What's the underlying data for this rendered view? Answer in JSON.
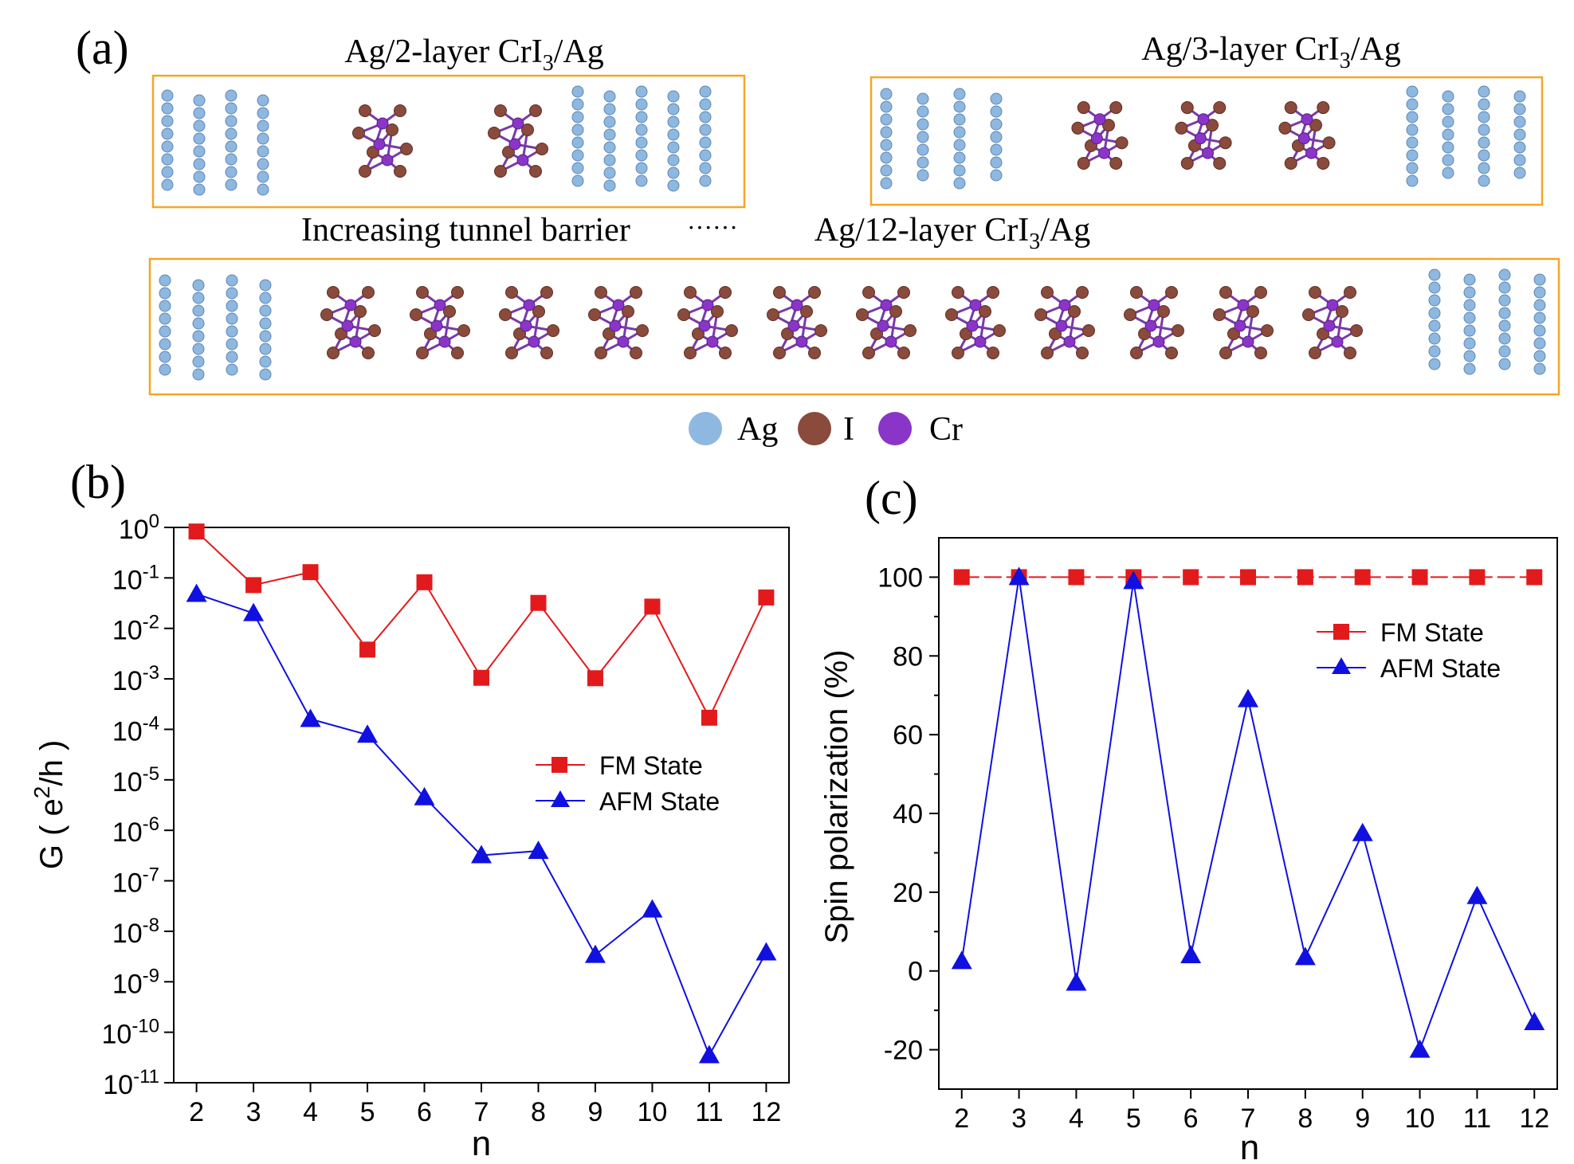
{
  "panel_a": {
    "label": "(a)",
    "structures": [
      {
        "title_pre": "Ag/2-layer CrI",
        "title_sub": "3",
        "title_post": "/Ag",
        "layers": 2
      },
      {
        "title_pre": "Ag/3-layer CrI",
        "title_sub": "3",
        "title_post": "/Ag",
        "layers": 3
      },
      {
        "title_pre": "Ag/12-layer CrI",
        "title_sub": "3",
        "title_post": "/Ag",
        "layers": 12
      }
    ],
    "barrier_text": "Increasing tunnel barrier",
    "barrier_dots": "······",
    "atom_legend": [
      {
        "label": "Ag",
        "color": "#8fb8e0"
      },
      {
        "label": "I",
        "color": "#8a4a3c"
      },
      {
        "label": "Cr",
        "color": "#8a35c8"
      }
    ],
    "box_color": "#f5a623"
  },
  "chart_data": [
    {
      "panel": "(b)",
      "type": "line",
      "xlabel": "n",
      "ylabel_pre": "G ( e",
      "ylabel_sup": "2",
      "ylabel_post": "/h )",
      "yscale": "log",
      "xlim": [
        1.6,
        12.4
      ],
      "ylim_exp": [
        -11,
        0
      ],
      "x": [
        2,
        3,
        4,
        5,
        6,
        7,
        8,
        9,
        10,
        11,
        12
      ],
      "ytick_exponents": [
        "0",
        "-1",
        "-2",
        "-3",
        "-4",
        "-5",
        "-6",
        "-7",
        "-8",
        "-9",
        "-10",
        "-11"
      ],
      "series": [
        {
          "name": "FM State",
          "color": "#e31a1c",
          "marker": "square",
          "values": [
            0.83,
            0.072,
            0.13,
            0.0038,
            0.082,
            0.00105,
            0.032,
            0.00103,
            0.027,
            0.00017,
            0.041
          ]
        },
        {
          "name": "AFM State",
          "color": "#1010e0",
          "marker": "triangle",
          "values": [
            0.048,
            0.02,
            0.00016,
            7.8e-05,
            4.5e-06,
            3.2e-07,
            3.9e-07,
            3.4e-09,
            2.7e-08,
            3.5e-11,
            3.8e-09
          ]
        }
      ],
      "legend_position": "center-right"
    },
    {
      "panel": "(c)",
      "type": "line",
      "xlabel": "n",
      "ylabel": "Spin polarization (%)",
      "xlim": [
        1.6,
        12.4
      ],
      "ylim": [
        -30,
        110
      ],
      "x": [
        2,
        3,
        4,
        5,
        6,
        7,
        8,
        9,
        10,
        11,
        12
      ],
      "yticks": [
        -20,
        0,
        20,
        40,
        60,
        80,
        100
      ],
      "series": [
        {
          "name": "FM State",
          "color": "#e31a1c",
          "marker": "square",
          "values": [
            100,
            100,
            100,
            100,
            100,
            100,
            100,
            100,
            100,
            100,
            100
          ]
        },
        {
          "name": "AFM State",
          "color": "#1010e0",
          "marker": "triangle",
          "values": [
            2.5,
            100,
            -3,
            99,
            4,
            69,
            3.5,
            35,
            -20,
            19,
            -13
          ]
        }
      ],
      "legend_position": "top-right"
    }
  ]
}
